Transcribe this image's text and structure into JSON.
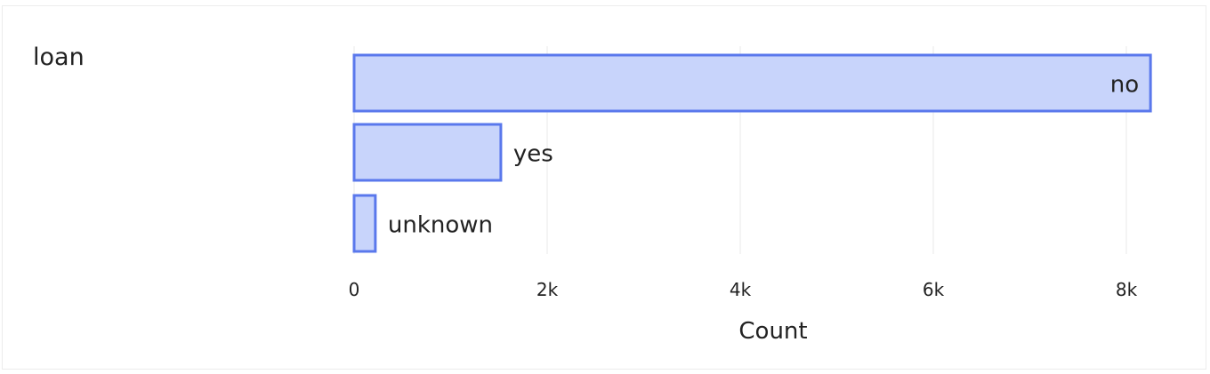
{
  "field": {
    "name": "loan"
  },
  "chart_data": {
    "type": "bar",
    "orientation": "horizontal",
    "categories": [
      "no",
      "yes",
      "unknown"
    ],
    "values": [
      8250,
      1520,
      220
    ],
    "xlabel": "Count",
    "xlim": [
      0,
      8500
    ],
    "x_ticks": [
      0,
      2000,
      4000,
      6000,
      8000
    ],
    "x_tick_labels": [
      "0",
      "2k",
      "4k",
      "6k",
      "8k"
    ],
    "grid": true,
    "bar_fill": "#c8d4fb",
    "bar_stroke": "#5a78ec",
    "grid_color": "#e8e8e8"
  }
}
